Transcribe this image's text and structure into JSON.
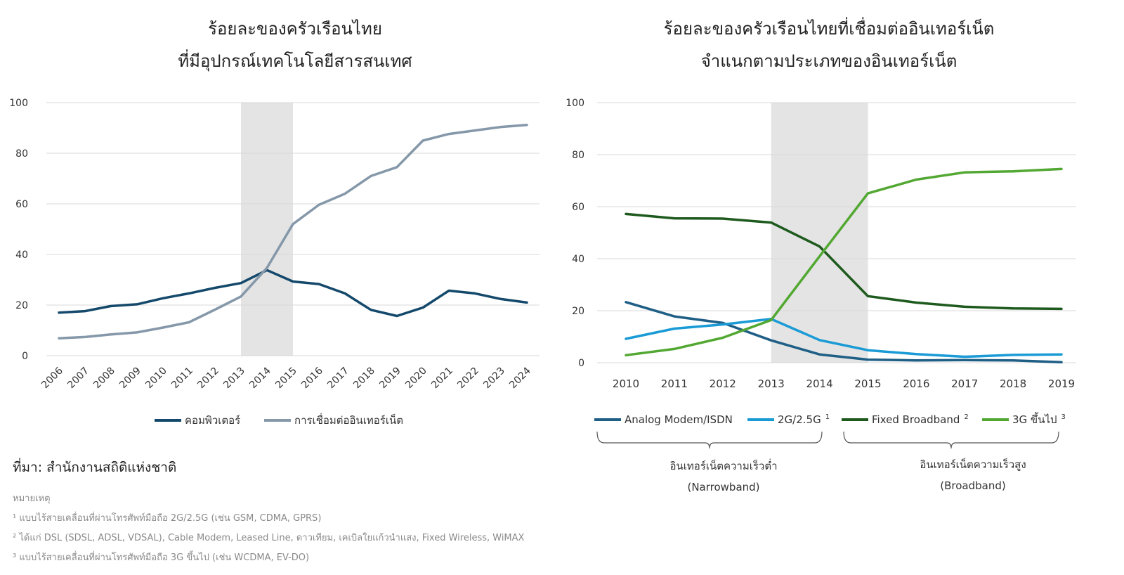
{
  "colors": {
    "computer": "#14496b",
    "internet": "#8598a9",
    "analog": "#1f5f86",
    "g2": "#1a9bd6",
    "fixed": "#1e5a1e",
    "g3": "#52a832",
    "shade": "#e4e4e4",
    "grid": "#d9d9d9"
  },
  "chart_data": [
    {
      "type": "line",
      "title_lines": [
        "ร้อยละของครัวเรือนไทย",
        "ที่มีอุปกรณ์เทคโนโลยีสารสนเทศ"
      ],
      "categories": [
        "2006",
        "2007",
        "2008",
        "2009",
        "2010",
        "2011",
        "2012",
        "2013",
        "2014",
        "2015",
        "2016",
        "2017",
        "2018",
        "2019",
        "2020",
        "2021",
        "2022",
        "2023",
        "2024"
      ],
      "ylim": [
        0,
        100
      ],
      "yticks": [
        0,
        20,
        40,
        60,
        80,
        100
      ],
      "shaded_range": [
        "2013",
        "2015"
      ],
      "series": [
        {
          "name": "คอมพิวเตอร์",
          "color_key": "computer",
          "values": [
            17.0,
            17.6,
            19.6,
            20.3,
            22.7,
            24.6,
            26.8,
            28.7,
            33.8,
            29.3,
            28.3,
            24.6,
            18.1,
            15.7,
            19.0,
            25.7,
            24.6,
            22.4,
            21.0
          ]
        },
        {
          "name": "การเชื่อมต่ออินเทอร์เน็ต",
          "color_key": "internet",
          "values": [
            6.9,
            7.4,
            8.4,
            9.2,
            11.1,
            13.2,
            18.2,
            23.4,
            34.7,
            52.0,
            59.6,
            64.0,
            71.0,
            74.5,
            85.0,
            87.6,
            89.0,
            90.4,
            91.2
          ]
        }
      ]
    },
    {
      "type": "line",
      "title_lines": [
        "ร้อยละของครัวเรือนไทยที่เชื่อมต่ออินเทอร์เน็ต",
        "จำแนกตามประเภทของอินเทอร์เน็ต"
      ],
      "categories": [
        "2010",
        "2011",
        "2012",
        "2013",
        "2014",
        "2015",
        "2016",
        "2017",
        "2018",
        "2019"
      ],
      "ylim": [
        0,
        100
      ],
      "yticks": [
        0,
        20,
        40,
        60,
        80,
        100
      ],
      "shaded_range": [
        "2013",
        "2015"
      ],
      "series": [
        {
          "name": "Analog Modem/ISDN",
          "sup": "",
          "color_key": "analog",
          "values": [
            23.3,
            17.8,
            15.3,
            8.6,
            3.2,
            1.2,
            0.9,
            1.0,
            0.9,
            0.2
          ]
        },
        {
          "name": "2G/2.5G",
          "sup": "1",
          "color_key": "g2",
          "values": [
            9.2,
            13.1,
            14.7,
            16.8,
            8.7,
            4.8,
            3.3,
            2.3,
            3.0,
            3.2
          ]
        },
        {
          "name": "Fixed Broadband",
          "sup": "2",
          "color_key": "fixed",
          "values": [
            57.2,
            55.5,
            55.4,
            53.9,
            44.7,
            25.6,
            23.1,
            21.5,
            20.9,
            20.7
          ]
        },
        {
          "name": "3G ขึ้นไป",
          "sup": "3",
          "color_key": "g3",
          "values": [
            2.9,
            5.3,
            9.6,
            16.4,
            40.9,
            65.1,
            70.4,
            73.2,
            73.6,
            74.5
          ]
        }
      ],
      "groups": [
        {
          "label_th": "อินเทอร์เน็ตความเร็วต่ำ",
          "label_en": "(Narrowband)"
        },
        {
          "label_th": "อินเทอร์เน็ตความเร็วสูง",
          "label_en": "(Broadband)"
        }
      ]
    }
  ],
  "source": "ที่มา: สำนักงานสถิติแห่งชาติ",
  "notes": [
    "หมายเหตุ",
    "¹ แบบไร้สายเคลื่อนที่ผ่านโทรศัพท์มือถือ 2G/2.5G (เช่น GSM, CDMA, GPRS)",
    "² ได้แก่ DSL (SDSL, ADSL, VDSAL), Cable Modem, Leased Line, ดาวเทียม, เคเบิลใยแก้วนำแสง, Fixed Wireless, WiMAX",
    "³ แบบไร้สายเคลื่อนที่ผ่านโทรศัพท์มือถือ 3G ขึ้นไป (เช่น WCDMA, EV-DO)"
  ]
}
